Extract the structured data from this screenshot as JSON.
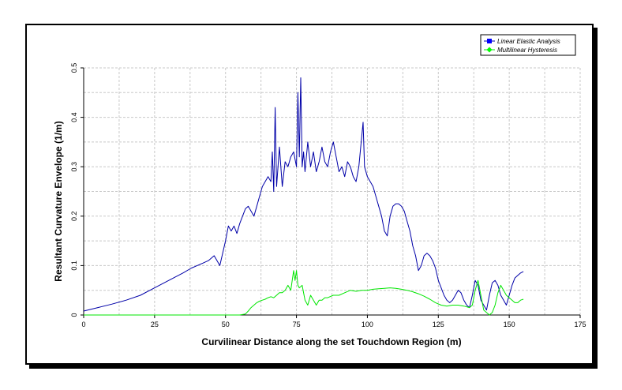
{
  "chart_data": {
    "type": "line",
    "title": "",
    "xlabel": "Curvilinear Distance along the set Touchdown Region (m)",
    "ylabel": "Resultant Curvature Envelope (1/m)",
    "xlim": [
      0,
      175
    ],
    "ylim": [
      0,
      0.5
    ],
    "x_ticks": [
      "0",
      "25",
      "50",
      "75",
      "100",
      "125",
      "150",
      "175"
    ],
    "y_ticks": [
      "0",
      "0.1",
      "0.2",
      "0.3",
      "0.4",
      "0.5"
    ],
    "grid": true,
    "legend_position": "top-right",
    "series": [
      {
        "name": "Linear Elastic Analysis",
        "color": "#0000a8",
        "marker_color": "#0000ff",
        "x": [
          0,
          5,
          10,
          15,
          20,
          25,
          30,
          35,
          38,
          40,
          42,
          44,
          46,
          48,
          50,
          51,
          52,
          53,
          54,
          55,
          56,
          57,
          58,
          59,
          60,
          61,
          62,
          63,
          64,
          65,
          66,
          66.5,
          67,
          67.5,
          68,
          69,
          70,
          71,
          72,
          73,
          74,
          75,
          75.5,
          76,
          76.5,
          77,
          77.5,
          78,
          79,
          80,
          81,
          82,
          83,
          84,
          85,
          86,
          87,
          88,
          89,
          90,
          91,
          92,
          93,
          94,
          95,
          96,
          97,
          98,
          98.5,
          99,
          100,
          101,
          102,
          103,
          104,
          105,
          106,
          107,
          108,
          109,
          110,
          111,
          112,
          113,
          114,
          115,
          116,
          117,
          118,
          119,
          120,
          121,
          122,
          123,
          124,
          125,
          126,
          127,
          128,
          129,
          130,
          131,
          132,
          133,
          134,
          135,
          136,
          137,
          138,
          139,
          140,
          141,
          142,
          143,
          144,
          145,
          146,
          147,
          148,
          149,
          150,
          151,
          152,
          153,
          154,
          155
        ],
        "y": [
          0.008,
          0.015,
          0.022,
          0.03,
          0.04,
          0.055,
          0.07,
          0.085,
          0.095,
          0.1,
          0.105,
          0.11,
          0.12,
          0.1,
          0.15,
          0.18,
          0.17,
          0.18,
          0.165,
          0.185,
          0.2,
          0.215,
          0.22,
          0.21,
          0.2,
          0.22,
          0.24,
          0.26,
          0.27,
          0.28,
          0.27,
          0.33,
          0.25,
          0.42,
          0.26,
          0.34,
          0.26,
          0.31,
          0.3,
          0.32,
          0.33,
          0.3,
          0.45,
          0.32,
          0.48,
          0.3,
          0.33,
          0.29,
          0.35,
          0.3,
          0.33,
          0.29,
          0.31,
          0.34,
          0.31,
          0.3,
          0.33,
          0.35,
          0.32,
          0.29,
          0.3,
          0.28,
          0.31,
          0.3,
          0.28,
          0.27,
          0.3,
          0.36,
          0.39,
          0.3,
          0.28,
          0.27,
          0.26,
          0.24,
          0.22,
          0.2,
          0.17,
          0.16,
          0.2,
          0.22,
          0.225,
          0.225,
          0.22,
          0.21,
          0.19,
          0.17,
          0.14,
          0.12,
          0.09,
          0.1,
          0.12,
          0.125,
          0.12,
          0.11,
          0.095,
          0.07,
          0.055,
          0.04,
          0.03,
          0.025,
          0.03,
          0.04,
          0.05,
          0.045,
          0.03,
          0.02,
          0.015,
          0.04,
          0.07,
          0.06,
          0.03,
          0.02,
          0.01,
          0.04,
          0.065,
          0.07,
          0.06,
          0.04,
          0.03,
          0.02,
          0.04,
          0.06,
          0.075,
          0.08,
          0.085,
          0.088
        ]
      },
      {
        "name": "Multilinear Hysteresis",
        "color": "#00e600",
        "marker_color": "#00ff00",
        "x": [
          0,
          40,
          50,
          55,
          57,
          58,
          59,
          60,
          61,
          62,
          63,
          64,
          65,
          66,
          67,
          68,
          69,
          70,
          71,
          72,
          73,
          74,
          74.5,
          75,
          75.5,
          76,
          77,
          78,
          79,
          80,
          81,
          82,
          83,
          84,
          85,
          86,
          88,
          90,
          92,
          94,
          96,
          98,
          100,
          102,
          104,
          106,
          108,
          110,
          112,
          114,
          116,
          118,
          120,
          122,
          124,
          126,
          128,
          130,
          132,
          134,
          136,
          137,
          138,
          139,
          140,
          141,
          142,
          143,
          144,
          145,
          146,
          147,
          148,
          149,
          150,
          151,
          152,
          153,
          154,
          155
        ],
        "y": [
          0,
          0,
          0,
          0,
          0.002,
          0.008,
          0.015,
          0.02,
          0.025,
          0.028,
          0.03,
          0.032,
          0.035,
          0.037,
          0.035,
          0.04,
          0.045,
          0.045,
          0.05,
          0.06,
          0.05,
          0.09,
          0.07,
          0.09,
          0.06,
          0.055,
          0.06,
          0.03,
          0.02,
          0.04,
          0.03,
          0.02,
          0.03,
          0.03,
          0.035,
          0.035,
          0.04,
          0.04,
          0.045,
          0.05,
          0.048,
          0.05,
          0.05,
          0.052,
          0.053,
          0.054,
          0.055,
          0.054,
          0.052,
          0.05,
          0.047,
          0.043,
          0.038,
          0.032,
          0.025,
          0.02,
          0.018,
          0.02,
          0.02,
          0.018,
          0.015,
          0.02,
          0.05,
          0.07,
          0.04,
          0.01,
          0.005,
          0.0,
          0.005,
          0.02,
          0.045,
          0.06,
          0.05,
          0.04,
          0.035,
          0.03,
          0.025,
          0.025,
          0.03,
          0.032
        ]
      }
    ]
  }
}
